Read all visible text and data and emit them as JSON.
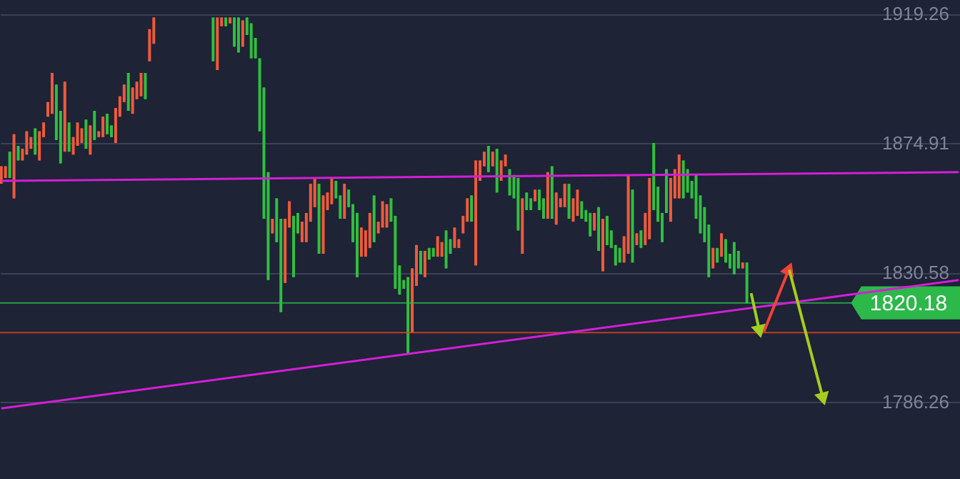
{
  "chart_data": {
    "type": "candlestick",
    "categories": [
      null,
      null,
      null,
      null,
      null,
      null,
      null,
      null,
      null,
      null,
      null,
      null,
      null,
      null,
      null,
      null,
      null,
      null,
      null,
      null,
      null,
      null,
      null,
      null,
      null,
      null,
      null,
      null,
      null,
      null,
      null,
      null,
      null,
      null,
      null,
      null,
      null,
      null,
      null,
      null,
      null,
      null,
      null,
      null,
      null,
      null,
      null,
      null,
      null,
      null,
      null,
      null,
      null,
      null,
      null,
      null,
      null,
      null,
      null,
      null,
      null,
      null,
      null,
      null,
      null,
      null,
      null,
      null,
      null,
      null,
      null,
      null,
      null,
      null,
      null,
      null,
      null,
      null,
      null,
      null,
      null,
      null,
      null,
      null,
      null,
      null,
      null,
      null,
      null,
      null,
      null,
      null,
      null,
      null,
      null,
      null,
      null,
      null,
      null,
      null,
      null,
      null,
      null,
      null,
      null,
      null,
      null,
      null,
      null,
      null,
      null,
      null,
      null,
      null,
      null,
      null,
      null,
      null,
      null,
      null,
      null,
      null,
      null,
      null,
      null,
      null,
      null,
      null,
      null,
      null,
      null,
      null,
      null,
      null,
      null,
      null,
      null,
      null,
      null,
      null,
      null,
      null,
      null,
      null,
      null,
      null,
      null,
      null,
      null,
      null,
      null,
      null,
      null,
      null,
      null,
      null,
      null,
      null,
      null,
      null,
      null,
      null,
      null,
      null,
      null,
      null,
      null,
      null,
      null,
      null,
      null,
      null,
      null,
      null,
      null,
      null,
      null,
      null,
      null,
      null,
      null,
      null,
      null,
      null,
      null,
      null,
      null,
      null,
      null,
      null,
      null,
      null,
      null,
      null,
      null,
      null,
      null,
      null,
      null,
      null,
      null,
      null,
      null,
      null,
      null,
      null,
      null,
      null,
      null,
      null,
      null,
      null,
      null,
      null,
      null,
      null,
      null,
      null,
      null,
      null,
      null,
      null,
      null,
      null,
      null,
      null,
      null
    ],
    "ohlc": [
      [
        1861,
        1867,
        1861,
        1867
      ],
      [
        1863,
        1867,
        1863,
        1867
      ],
      [
        1872,
        1872,
        1863,
        1863
      ],
      [
        1856,
        1878,
        1856,
        1878
      ],
      [
        1874,
        1874,
        1869,
        1869
      ],
      [
        1869,
        1873,
        1869,
        1873
      ],
      [
        1871,
        1879,
        1871,
        1879
      ],
      [
        1873,
        1877,
        1873,
        1877
      ],
      [
        1880,
        1880,
        1871,
        1871
      ],
      [
        1869,
        1879,
        1869,
        1879
      ],
      [
        1877,
        1882,
        1877,
        1882
      ],
      [
        1884,
        1889,
        1884,
        1889
      ],
      [
        1885,
        1899,
        1885,
        1899
      ],
      [
        1895,
        1895,
        1876,
        1876
      ],
      [
        1886,
        1886,
        1868,
        1868
      ],
      [
        1872,
        1896,
        1872,
        1896
      ],
      [
        1882,
        1882,
        1872,
        1872
      ],
      [
        1871,
        1877,
        1871,
        1877
      ],
      [
        1874,
        1882,
        1874,
        1882
      ],
      [
        1875,
        1880,
        1875,
        1880
      ],
      [
        1883,
        1883,
        1873,
        1873
      ],
      [
        1871,
        1881,
        1871,
        1881
      ],
      [
        1886,
        1886,
        1876,
        1876
      ],
      [
        1877,
        1879,
        1877,
        1879
      ],
      [
        1877,
        1884,
        1877,
        1884
      ],
      [
        1885,
        1885,
        1878,
        1878
      ],
      [
        1881,
        1881,
        1877,
        1877
      ],
      [
        1875,
        1887,
        1875,
        1887
      ],
      [
        1884,
        1891,
        1884,
        1891
      ],
      [
        1889,
        1895,
        1889,
        1895
      ],
      [
        1899,
        1899,
        1886,
        1886
      ],
      [
        1885,
        1894,
        1885,
        1894
      ],
      [
        1890,
        1896,
        1890,
        1896
      ],
      [
        1891,
        1899,
        1891,
        1899
      ],
      [
        1899,
        1899,
        1890,
        1890
      ],
      [
        1903,
        1914,
        1903,
        1914
      ],
      [
        1909,
        1918,
        1909,
        1918
      ],
      null,
      null,
      null,
      null,
      null,
      null,
      null,
      null,
      null,
      null,
      null,
      null,
      null,
      [
        1918,
        1918,
        1903,
        1903
      ],
      [
        1900,
        1918,
        1900,
        1918
      ],
      [
        1915,
        1918,
        1915,
        1918
      ],
      [
        1918,
        1918,
        1915,
        1915
      ],
      [
        1916,
        1918,
        1916,
        1918
      ],
      [
        1918,
        1918,
        1908,
        1908
      ],
      [
        1918,
        1918,
        1906,
        1906
      ],
      [
        1908,
        1917,
        1908,
        1917
      ],
      [
        1918,
        1918,
        1912,
        1912
      ],
      [
        1916,
        1916,
        1904,
        1904
      ],
      [
        1911,
        1911,
        1904,
        1904
      ],
      [
        1904,
        1904,
        1879,
        1879
      ],
      [
        1894,
        1894,
        1849,
        1849
      ],
      [
        1865,
        1865,
        1828,
        1828
      ],
      [
        1844,
        1849,
        1844,
        1849
      ],
      [
        1856,
        1856,
        1841,
        1841
      ],
      [
        1849,
        1849,
        1817,
        1817
      ],
      [
        1827,
        1849,
        1827,
        1849
      ],
      [
        1846,
        1855,
        1846,
        1855
      ],
      [
        1850,
        1850,
        1829,
        1829
      ],
      [
        1851,
        1851,
        1844,
        1844
      ],
      [
        1841,
        1848,
        1841,
        1848
      ],
      [
        1841,
        1851,
        1841,
        1851
      ],
      [
        1848,
        1861,
        1848,
        1861
      ],
      [
        1853,
        1863,
        1853,
        1863
      ],
      [
        1861,
        1861,
        1837,
        1837
      ],
      [
        1837,
        1857,
        1837,
        1857
      ],
      [
        1852,
        1858,
        1852,
        1858
      ],
      [
        1854,
        1863,
        1854,
        1863
      ],
      [
        1862,
        1862,
        1856,
        1856
      ],
      [
        1857,
        1857,
        1849,
        1849
      ],
      [
        1849,
        1861,
        1849,
        1861
      ],
      [
        1859,
        1859,
        1853,
        1853
      ],
      [
        1854,
        1854,
        1841,
        1841
      ],
      [
        1851,
        1851,
        1829,
        1829
      ],
      [
        1836,
        1846,
        1836,
        1846
      ],
      [
        1836,
        1845,
        1836,
        1845
      ],
      [
        1839,
        1851,
        1839,
        1851
      ],
      [
        1857,
        1857,
        1841,
        1841
      ],
      [
        1844,
        1848,
        1844,
        1848
      ],
      [
        1846,
        1855,
        1846,
        1855
      ],
      [
        1846,
        1854,
        1846,
        1854
      ],
      [
        1856,
        1856,
        1848,
        1848
      ],
      [
        1850,
        1850,
        1825,
        1825
      ],
      [
        1833,
        1833,
        1823,
        1823
      ],
      [
        1828,
        1828,
        1825,
        1825
      ],
      [
        1829,
        1829,
        1803,
        1803
      ],
      [
        1810,
        1832,
        1810,
        1832
      ],
      [
        1826,
        1840,
        1826,
        1840
      ],
      [
        1838,
        1838,
        1830,
        1830
      ],
      [
        1829,
        1838,
        1829,
        1838
      ],
      [
        1839,
        1839,
        1835,
        1835
      ],
      [
        1839,
        1839,
        1836,
        1836
      ],
      [
        1836,
        1843,
        1836,
        1843
      ],
      [
        1836,
        1841,
        1836,
        1841
      ],
      [
        1845,
        1845,
        1832,
        1832
      ],
      [
        1842,
        1842,
        1837,
        1837
      ],
      [
        1839,
        1846,
        1839,
        1846
      ],
      [
        1839,
        1842,
        1839,
        1842
      ],
      [
        1844,
        1850,
        1844,
        1850
      ],
      [
        1848,
        1856,
        1848,
        1856
      ],
      [
        1857,
        1857,
        1848,
        1848
      ],
      [
        1833,
        1869,
        1833,
        1869
      ],
      [
        1862,
        1869,
        1862,
        1869
      ],
      [
        1867,
        1872,
        1867,
        1872
      ],
      [
        1874,
        1874,
        1865,
        1865
      ],
      [
        1867,
        1872,
        1867,
        1872
      ],
      [
        1873,
        1873,
        1858,
        1858
      ],
      [
        1862,
        1869,
        1862,
        1869
      ],
      [
        1867,
        1871,
        1867,
        1871
      ],
      [
        1866,
        1866,
        1857,
        1857
      ],
      [
        1864,
        1864,
        1856,
        1856
      ],
      [
        1863,
        1863,
        1845,
        1845
      ],
      [
        1837,
        1856,
        1837,
        1856
      ],
      [
        1858,
        1858,
        1852,
        1852
      ],
      [
        1856,
        1856,
        1852,
        1852
      ],
      [
        1855,
        1859,
        1855,
        1859
      ],
      [
        1859,
        1859,
        1852,
        1852
      ],
      [
        1856,
        1856,
        1849,
        1849
      ],
      [
        1849,
        1865,
        1849,
        1865
      ],
      [
        1867,
        1867,
        1849,
        1849
      ],
      [
        1847,
        1858,
        1847,
        1858
      ],
      [
        1853,
        1856,
        1853,
        1856
      ],
      [
        1853,
        1861,
        1853,
        1861
      ],
      [
        1861,
        1861,
        1849,
        1849
      ],
      [
        1848,
        1856,
        1848,
        1856
      ],
      [
        1850,
        1859,
        1850,
        1859
      ],
      [
        1855,
        1855,
        1849,
        1849
      ],
      [
        1852,
        1852,
        1848,
        1848
      ],
      [
        1851,
        1851,
        1843,
        1843
      ],
      [
        1845,
        1851,
        1845,
        1851
      ],
      [
        1853,
        1853,
        1838,
        1838
      ],
      [
        1831,
        1849,
        1831,
        1849
      ],
      [
        1850,
        1850,
        1840,
        1840
      ],
      [
        1845,
        1845,
        1839,
        1839
      ],
      [
        1840,
        1840,
        1833,
        1833
      ],
      [
        1839,
        1839,
        1834,
        1834
      ],
      [
        1834,
        1843,
        1834,
        1843
      ],
      [
        1837,
        1864,
        1837,
        1864
      ],
      [
        1859,
        1859,
        1834,
        1834
      ],
      [
        1840,
        1844,
        1840,
        1844
      ],
      [
        1845,
        1845,
        1839,
        1839
      ],
      [
        1840,
        1851,
        1840,
        1851
      ],
      [
        1842,
        1863,
        1842,
        1863
      ],
      [
        1875,
        1875,
        1852,
        1852
      ],
      [
        1860,
        1860,
        1848,
        1848
      ],
      [
        1851,
        1851,
        1841,
        1841
      ],
      [
        1866,
        1866,
        1851,
        1851
      ],
      [
        1848,
        1863,
        1848,
        1863
      ],
      [
        1856,
        1866,
        1856,
        1866
      ],
      [
        1856,
        1871,
        1856,
        1871
      ],
      [
        1869,
        1869,
        1856,
        1856
      ],
      [
        1866,
        1866,
        1858,
        1858
      ],
      [
        1862,
        1862,
        1856,
        1856
      ],
      [
        1864,
        1864,
        1849,
        1849
      ],
      [
        1857,
        1857,
        1844,
        1844
      ],
      [
        1853,
        1853,
        1841,
        1841
      ],
      [
        1847,
        1847,
        1829,
        1829
      ],
      [
        1832,
        1839,
        1832,
        1839
      ],
      [
        1839,
        1839,
        1834,
        1834
      ],
      [
        1836,
        1844,
        1836,
        1844
      ],
      [
        1842,
        1842,
        1834,
        1834
      ],
      [
        1837,
        1837,
        1832,
        1832
      ],
      [
        1841,
        1841,
        1830,
        1830
      ],
      [
        1838,
        1838,
        1832,
        1832
      ],
      [
        1832,
        1834,
        1832,
        1834
      ],
      [
        1834,
        1834,
        1820,
        1820
      ],
      null,
      null,
      null,
      null,
      null,
      null,
      null,
      null,
      null,
      null,
      null,
      null,
      null,
      null,
      null,
      null,
      null,
      null,
      null,
      null,
      null,
      null,
      null,
      null,
      null,
      null,
      null,
      null,
      null,
      null,
      null,
      null,
      null,
      null,
      null,
      null,
      null,
      null,
      null,
      null,
      null,
      null,
      null,
      null,
      null,
      null,
      null,
      null,
      null,
      null
    ],
    "colors": [
      "#ef5a3c",
      "#ef5a3c",
      "#2fbf3f",
      "#ef5a3c",
      "#2fbf3f",
      "#ef5a3c",
      "#ef5a3c",
      "#ef5a3c",
      "#2fbf3f",
      "#ef5a3c",
      "#ef5a3c",
      "#ef5a3c",
      "#ef5a3c",
      "#2fbf3f",
      "#2fbf3f",
      "#ef5a3c",
      "#2fbf3f",
      "#ef5a3c",
      "#ef5a3c",
      "#ef5a3c",
      "#2fbf3f",
      "#ef5a3c",
      "#2fbf3f",
      "#ef5a3c",
      "#ef5a3c",
      "#2fbf3f",
      "#2fbf3f",
      "#ef5a3c",
      "#ef5a3c",
      "#ef5a3c",
      "#2fbf3f",
      "#ef5a3c",
      "#ef5a3c",
      "#ef5a3c",
      "#2fbf3f",
      "#ef5a3c",
      "#ef5a3c",
      null,
      null,
      null,
      null,
      null,
      null,
      null,
      null,
      null,
      null,
      null,
      null,
      null,
      "#2fbf3f",
      "#ef5a3c",
      "#ef5a3c",
      "#2fbf3f",
      "#ef5a3c",
      "#2fbf3f",
      "#2fbf3f",
      "#ef5a3c",
      "#2fbf3f",
      "#2fbf3f",
      "#2fbf3f",
      "#2fbf3f",
      "#2fbf3f",
      "#2fbf3f",
      "#ef5a3c",
      "#2fbf3f",
      "#2fbf3f",
      "#ef5a3c",
      "#ef5a3c",
      "#2fbf3f",
      "#2fbf3f",
      "#ef5a3c",
      "#ef5a3c",
      "#ef5a3c",
      "#ef5a3c",
      "#2fbf3f",
      "#ef5a3c",
      "#ef5a3c",
      "#ef5a3c",
      "#2fbf3f",
      "#2fbf3f",
      "#ef5a3c",
      "#2fbf3f",
      "#2fbf3f",
      "#2fbf3f",
      "#ef5a3c",
      "#ef5a3c",
      "#ef5a3c",
      "#2fbf3f",
      "#ef5a3c",
      "#ef5a3c",
      "#ef5a3c",
      "#2fbf3f",
      "#2fbf3f",
      "#2fbf3f",
      "#2fbf3f",
      "#2fbf3f",
      "#ef5a3c",
      "#ef5a3c",
      "#2fbf3f",
      "#ef5a3c",
      "#2fbf3f",
      "#2fbf3f",
      "#ef5a3c",
      "#ef5a3c",
      "#2fbf3f",
      "#2fbf3f",
      "#ef5a3c",
      "#ef5a3c",
      "#ef5a3c",
      "#ef5a3c",
      "#2fbf3f",
      "#ef5a3c",
      "#ef5a3c",
      "#ef5a3c",
      "#2fbf3f",
      "#ef5a3c",
      "#2fbf3f",
      "#ef5a3c",
      "#ef5a3c",
      "#2fbf3f",
      "#2fbf3f",
      "#2fbf3f",
      "#ef5a3c",
      "#2fbf3f",
      "#2fbf3f",
      "#ef5a3c",
      "#2fbf3f",
      "#2fbf3f",
      "#ef5a3c",
      "#2fbf3f",
      "#ef5a3c",
      "#ef5a3c",
      "#ef5a3c",
      "#2fbf3f",
      "#ef5a3c",
      "#ef5a3c",
      "#2fbf3f",
      "#2fbf3f",
      "#2fbf3f",
      "#ef5a3c",
      "#2fbf3f",
      "#ef5a3c",
      "#2fbf3f",
      "#2fbf3f",
      "#2fbf3f",
      "#2fbf3f",
      "#ef5a3c",
      "#ef5a3c",
      "#2fbf3f",
      "#ef5a3c",
      "#2fbf3f",
      "#ef5a3c",
      "#ef5a3c",
      "#2fbf3f",
      "#2fbf3f",
      "#2fbf3f",
      "#2fbf3f",
      "#ef5a3c",
      "#ef5a3c",
      "#ef5a3c",
      "#2fbf3f",
      "#2fbf3f",
      "#2fbf3f",
      "#2fbf3f",
      "#2fbf3f",
      "#2fbf3f",
      "#2fbf3f",
      "#ef5a3c",
      "#2fbf3f",
      "#ef5a3c",
      "#2fbf3f",
      "#2fbf3f",
      "#2fbf3f",
      "#2fbf3f",
      "#ef5a3c",
      "#2fbf3f",
      null,
      null,
      null,
      null,
      null,
      null,
      null,
      null,
      null,
      null,
      null,
      null,
      null,
      null,
      null,
      null,
      null,
      null,
      null,
      null,
      null,
      null,
      null,
      null,
      null,
      null,
      null,
      null,
      null,
      null,
      null,
      null,
      null,
      null,
      null,
      null,
      null,
      null,
      null,
      null,
      null,
      null,
      null,
      null,
      null,
      null,
      null,
      null,
      null,
      null
    ],
    "series": [
      {
        "type": "line",
        "color": "#d21fd6",
        "values": [
          1862,
          null,
          null,
          null,
          null,
          null,
          null,
          null,
          null,
          null,
          null,
          null,
          null,
          null,
          null,
          null,
          null,
          null,
          null,
          null,
          null,
          null,
          null,
          null,
          null,
          null,
          null,
          null,
          null,
          null,
          null,
          null,
          null,
          null,
          null,
          null,
          null,
          null,
          null,
          null,
          null,
          null,
          null,
          null,
          null,
          null,
          null,
          null,
          null,
          null,
          null,
          null,
          null,
          null,
          null,
          null,
          null,
          null,
          null,
          null,
          null,
          null,
          null,
          null,
          null,
          null,
          null,
          null,
          null,
          null,
          null,
          null,
          null,
          null,
          null,
          null,
          null,
          null,
          null,
          null,
          null,
          null,
          null,
          null,
          null,
          null,
          null,
          null,
          null,
          null,
          null,
          null,
          null,
          null,
          null,
          null,
          null,
          null,
          null,
          null,
          null,
          null,
          null,
          null,
          null,
          null,
          null,
          null,
          null,
          null,
          null,
          null,
          null,
          null,
          null,
          null,
          null,
          null,
          null,
          null,
          null,
          null,
          null,
          null,
          null,
          null,
          null,
          null,
          null,
          null,
          null,
          null,
          null,
          null,
          null,
          null,
          null,
          null,
          null,
          null,
          null,
          null,
          null,
          null,
          null,
          null,
          null,
          null,
          null,
          null,
          null,
          null,
          null,
          null,
          null,
          null,
          null,
          null,
          null,
          null,
          null,
          null,
          null,
          null,
          null,
          null,
          null,
          null,
          null,
          null,
          null,
          null,
          null,
          null,
          null,
          null,
          null,
          null,
          null,
          null,
          null,
          null,
          null,
          null,
          null,
          null,
          null,
          null,
          null,
          null,
          null,
          null,
          null,
          null,
          null,
          null,
          null,
          null,
          null,
          null,
          null,
          null,
          null,
          null,
          null,
          null,
          null,
          null,
          null,
          null,
          null,
          null,
          null,
          null,
          null,
          null,
          null,
          null,
          null,
          null,
          null,
          null,
          null,
          null,
          null,
          null,
          1865
        ]
      },
      {
        "type": "line",
        "color": "#d21fd6",
        "values": [
          1784,
          null,
          null,
          null,
          null,
          null,
          null,
          null,
          null,
          null,
          null,
          null,
          null,
          null,
          null,
          null,
          null,
          null,
          null,
          null,
          null,
          null,
          null,
          null,
          null,
          null,
          null,
          null,
          null,
          null,
          null,
          null,
          null,
          null,
          null,
          null,
          null,
          null,
          null,
          null,
          null,
          null,
          null,
          null,
          null,
          null,
          null,
          null,
          null,
          null,
          null,
          null,
          null,
          null,
          null,
          null,
          null,
          null,
          null,
          null,
          null,
          null,
          null,
          null,
          null,
          null,
          null,
          null,
          null,
          null,
          null,
          null,
          null,
          null,
          null,
          null,
          null,
          null,
          null,
          null,
          null,
          null,
          null,
          null,
          null,
          null,
          null,
          null,
          null,
          null,
          null,
          null,
          null,
          null,
          null,
          null,
          null,
          null,
          null,
          null,
          null,
          null,
          null,
          null,
          null,
          null,
          null,
          null,
          null,
          null,
          null,
          null,
          null,
          null,
          null,
          null,
          null,
          null,
          null,
          null,
          null,
          null,
          null,
          null,
          null,
          null,
          null,
          null,
          null,
          null,
          null,
          null,
          null,
          null,
          null,
          null,
          null,
          null,
          null,
          null,
          null,
          null,
          null,
          null,
          null,
          null,
          null,
          null,
          null,
          null,
          null,
          null,
          null,
          null,
          null,
          null,
          null,
          null,
          null,
          null,
          null,
          null,
          null,
          null,
          null,
          null,
          null,
          null,
          null,
          null,
          null,
          null,
          null,
          null,
          null,
          null,
          null,
          null,
          null,
          null,
          null,
          null,
          null,
          null,
          null,
          null,
          null,
          null,
          null,
          null,
          null,
          null,
          null,
          null,
          null,
          null,
          null,
          null,
          null,
          null,
          null,
          null,
          null,
          null,
          null,
          null,
          null,
          null,
          null,
          null,
          null,
          null,
          null,
          null,
          null,
          null,
          null,
          null,
          null,
          null,
          null,
          null,
          null,
          null,
          null,
          null,
          1828
        ]
      },
      {
        "type": "line",
        "color": "#9fd11c",
        "marker": "triangle",
        "values": [
          null,
          null,
          null,
          null,
          null,
          null,
          null,
          null,
          null,
          null,
          null,
          null,
          null,
          null,
          null,
          null,
          null,
          null,
          null,
          null,
          null,
          null,
          null,
          null,
          null,
          null,
          null,
          null,
          null,
          null,
          null,
          null,
          null,
          null,
          null,
          null,
          null,
          null,
          null,
          null,
          null,
          null,
          null,
          null,
          null,
          null,
          null,
          null,
          null,
          null,
          null,
          null,
          null,
          null,
          null,
          null,
          null,
          null,
          null,
          null,
          null,
          null,
          null,
          null,
          null,
          null,
          null,
          null,
          null,
          null,
          null,
          null,
          null,
          null,
          null,
          null,
          null,
          null,
          null,
          null,
          null,
          null,
          null,
          null,
          null,
          null,
          null,
          null,
          null,
          null,
          null,
          null,
          null,
          null,
          null,
          null,
          null,
          null,
          null,
          null,
          null,
          null,
          null,
          null,
          null,
          null,
          null,
          null,
          null,
          null,
          null,
          null,
          null,
          null,
          null,
          null,
          null,
          null,
          null,
          null,
          null,
          null,
          null,
          null,
          null,
          null,
          null,
          null,
          null,
          null,
          null,
          null,
          null,
          null,
          null,
          null,
          null,
          null,
          null,
          null,
          null,
          null,
          null,
          null,
          null,
          null,
          null,
          null,
          null,
          null,
          null,
          null,
          null,
          null,
          null,
          null,
          null,
          null,
          null,
          null,
          null,
          null,
          null,
          null,
          null,
          null,
          null,
          null,
          null,
          null,
          null,
          null,
          null,
          null,
          null,
          null,
          null,
          1823.5,
          null,
          1810.3,
          null,
          null,
          null,
          null,
          null,
          null,
          null,
          null,
          null,
          null,
          null,
          null,
          null,
          null,
          null,
          null,
          null,
          null,
          null,
          null,
          null,
          null,
          null,
          null,
          null,
          null,
          null,
          null,
          null,
          null,
          null,
          null,
          null,
          null,
          null,
          null,
          null,
          null,
          null,
          null,
          null,
          null,
          null,
          null,
          null,
          null,
          null
        ]
      },
      {
        "type": "line",
        "color": "#f0413a",
        "marker": "triangle",
        "values": [
          null,
          null,
          null,
          null,
          null,
          null,
          null,
          null,
          null,
          null,
          null,
          null,
          null,
          null,
          null,
          null,
          null,
          null,
          null,
          null,
          null,
          null,
          null,
          null,
          null,
          null,
          null,
          null,
          null,
          null,
          null,
          null,
          null,
          null,
          null,
          null,
          null,
          null,
          null,
          null,
          null,
          null,
          null,
          null,
          null,
          null,
          null,
          null,
          null,
          null,
          null,
          null,
          null,
          null,
          null,
          null,
          null,
          null,
          null,
          null,
          null,
          null,
          null,
          null,
          null,
          null,
          null,
          null,
          null,
          null,
          null,
          null,
          null,
          null,
          null,
          null,
          null,
          null,
          null,
          null,
          null,
          null,
          null,
          null,
          null,
          null,
          null,
          null,
          null,
          null,
          null,
          null,
          null,
          null,
          null,
          null,
          null,
          null,
          null,
          null,
          null,
          null,
          null,
          null,
          null,
          null,
          null,
          null,
          null,
          null,
          null,
          null,
          null,
          null,
          null,
          null,
          null,
          null,
          null,
          null,
          null,
          null,
          null,
          null,
          null,
          null,
          null,
          null,
          null,
          null,
          null,
          null,
          null,
          null,
          null,
          null,
          null,
          null,
          null,
          null,
          null,
          null,
          null,
          null,
          null,
          null,
          null,
          null,
          null,
          null,
          null,
          null,
          null,
          null,
          null,
          null,
          null,
          null,
          null,
          null,
          null,
          null,
          null,
          null,
          null,
          null,
          null,
          null,
          null,
          null,
          null,
          null,
          null,
          null,
          null,
          null,
          null,
          null,
          null,
          null,
          1810.3,
          null,
          null,
          null,
          null,
          null,
          1832,
          null,
          null,
          null,
          null,
          null,
          null,
          null,
          null,
          null,
          null,
          null,
          null,
          null,
          null,
          null,
          null,
          null,
          null,
          null,
          null,
          null,
          null,
          null,
          null,
          null,
          null,
          null,
          null,
          null,
          null,
          null,
          null,
          null,
          null,
          null,
          null,
          null,
          null,
          null,
          null
        ]
      },
      {
        "type": "line",
        "color": "#a9cc1c",
        "marker": "triangle",
        "values": [
          null,
          null,
          null,
          null,
          null,
          null,
          null,
          null,
          null,
          null,
          null,
          null,
          null,
          null,
          null,
          null,
          null,
          null,
          null,
          null,
          null,
          null,
          null,
          null,
          null,
          null,
          null,
          null,
          null,
          null,
          null,
          null,
          null,
          null,
          null,
          null,
          null,
          null,
          null,
          null,
          null,
          null,
          null,
          null,
          null,
          null,
          null,
          null,
          null,
          null,
          null,
          null,
          null,
          null,
          null,
          null,
          null,
          null,
          null,
          null,
          null,
          null,
          null,
          null,
          null,
          null,
          null,
          null,
          null,
          null,
          null,
          null,
          null,
          null,
          null,
          null,
          null,
          null,
          null,
          null,
          null,
          null,
          null,
          null,
          null,
          null,
          null,
          null,
          null,
          null,
          null,
          null,
          null,
          null,
          null,
          null,
          null,
          null,
          null,
          null,
          null,
          null,
          null,
          null,
          null,
          null,
          null,
          null,
          null,
          null,
          null,
          null,
          null,
          null,
          null,
          null,
          null,
          null,
          null,
          null,
          null,
          null,
          null,
          null,
          null,
          null,
          null,
          null,
          null,
          null,
          null,
          null,
          null,
          null,
          null,
          null,
          null,
          null,
          null,
          null,
          null,
          null,
          null,
          null,
          null,
          null,
          null,
          null,
          null,
          null,
          null,
          null,
          null,
          null,
          null,
          null,
          null,
          null,
          null,
          null,
          null,
          null,
          null,
          null,
          null,
          null,
          null,
          null,
          null,
          null,
          null,
          null,
          null,
          null,
          null,
          null,
          null,
          null,
          null,
          null,
          null,
          null,
          null,
          null,
          null,
          null,
          1831.5,
          null,
          null,
          null,
          null,
          null,
          null,
          null,
          1787.2,
          null,
          null,
          null,
          null,
          null,
          null,
          null,
          null,
          null,
          null,
          null,
          null,
          null,
          null,
          null,
          null,
          null,
          null,
          null,
          null,
          null,
          null,
          null,
          null,
          null,
          null,
          null,
          null,
          null,
          null,
          null,
          null
        ]
      }
    ],
    "ref_lines": [
      {
        "axis": "y",
        "value": 1820.18,
        "label": "1820.18",
        "color": "#2db84a"
      },
      {
        "axis": "y",
        "value": 1810,
        "color": "#e8402a"
      }
    ],
    "ylim": [
      1759.8,
      1924
    ],
    "yticks": [
      1786.26,
      1830.58,
      1874.91,
      1919.26
    ],
    "grid": "y",
    "tick_labels": "y"
  }
}
